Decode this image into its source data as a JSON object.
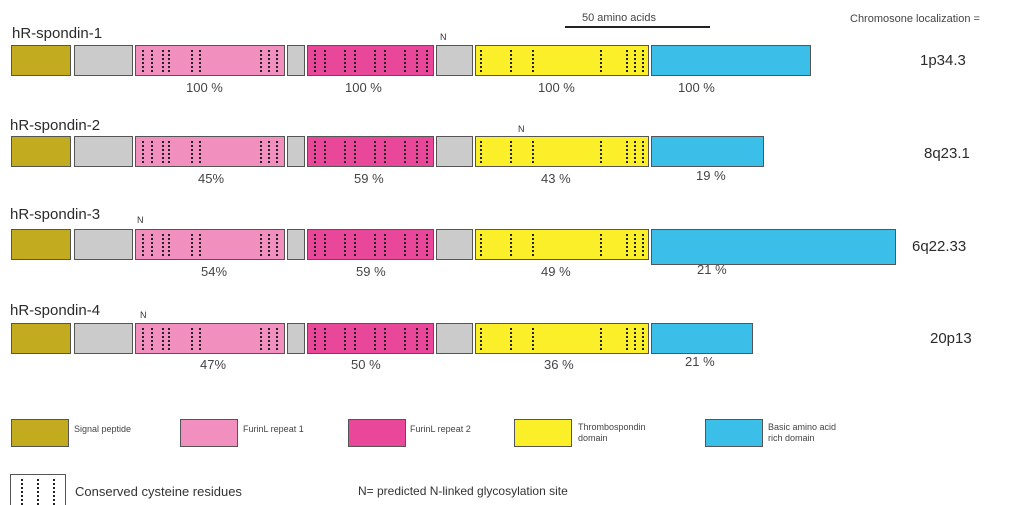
{
  "header": {
    "scale_label": "50 amino acids",
    "chromosome_header": "Chromosone localization ="
  },
  "colors": {
    "signal": "#c2ab1e",
    "grey": "#cbcbcb",
    "furin1": "#f18fbf",
    "furin2": "#e8479a",
    "thrombo": "#fbef2a",
    "basic": "#3bbfe9"
  },
  "proteins": [
    {
      "name": "hR-spondin-1",
      "location": "1p34.3",
      "n_site": "N",
      "percents": [
        "100 %",
        "100 %",
        "100 %",
        "100 %"
      ]
    },
    {
      "name": "hR-spondin-2",
      "location": "8q23.1",
      "n_site": "N",
      "percents": [
        "45%",
        "59 %",
        "43 %",
        "19 %"
      ]
    },
    {
      "name": "hR-spondin-3",
      "location": "6q22.33",
      "n_site": "N",
      "percents": [
        "54%",
        "59 %",
        "49 %",
        "21 %"
      ]
    },
    {
      "name": "hR-spondin-4",
      "location": "20p13",
      "n_site": "N",
      "percents": [
        "47%",
        "50 %",
        "36 %",
        "21 %"
      ]
    }
  ],
  "legend": {
    "signal": "Signal peptide",
    "furin1": "FurinL repeat 1",
    "furin2": "FurinL repeat 2",
    "thrombo_1": "Thrombospondin",
    "thrombo_2": "domain",
    "basic_1": "Basic amino acid",
    "basic_2": "rich domain",
    "cysteine": "Conserved cysteine residues",
    "nsite": "N= predicted N-linked glycosylation site"
  }
}
